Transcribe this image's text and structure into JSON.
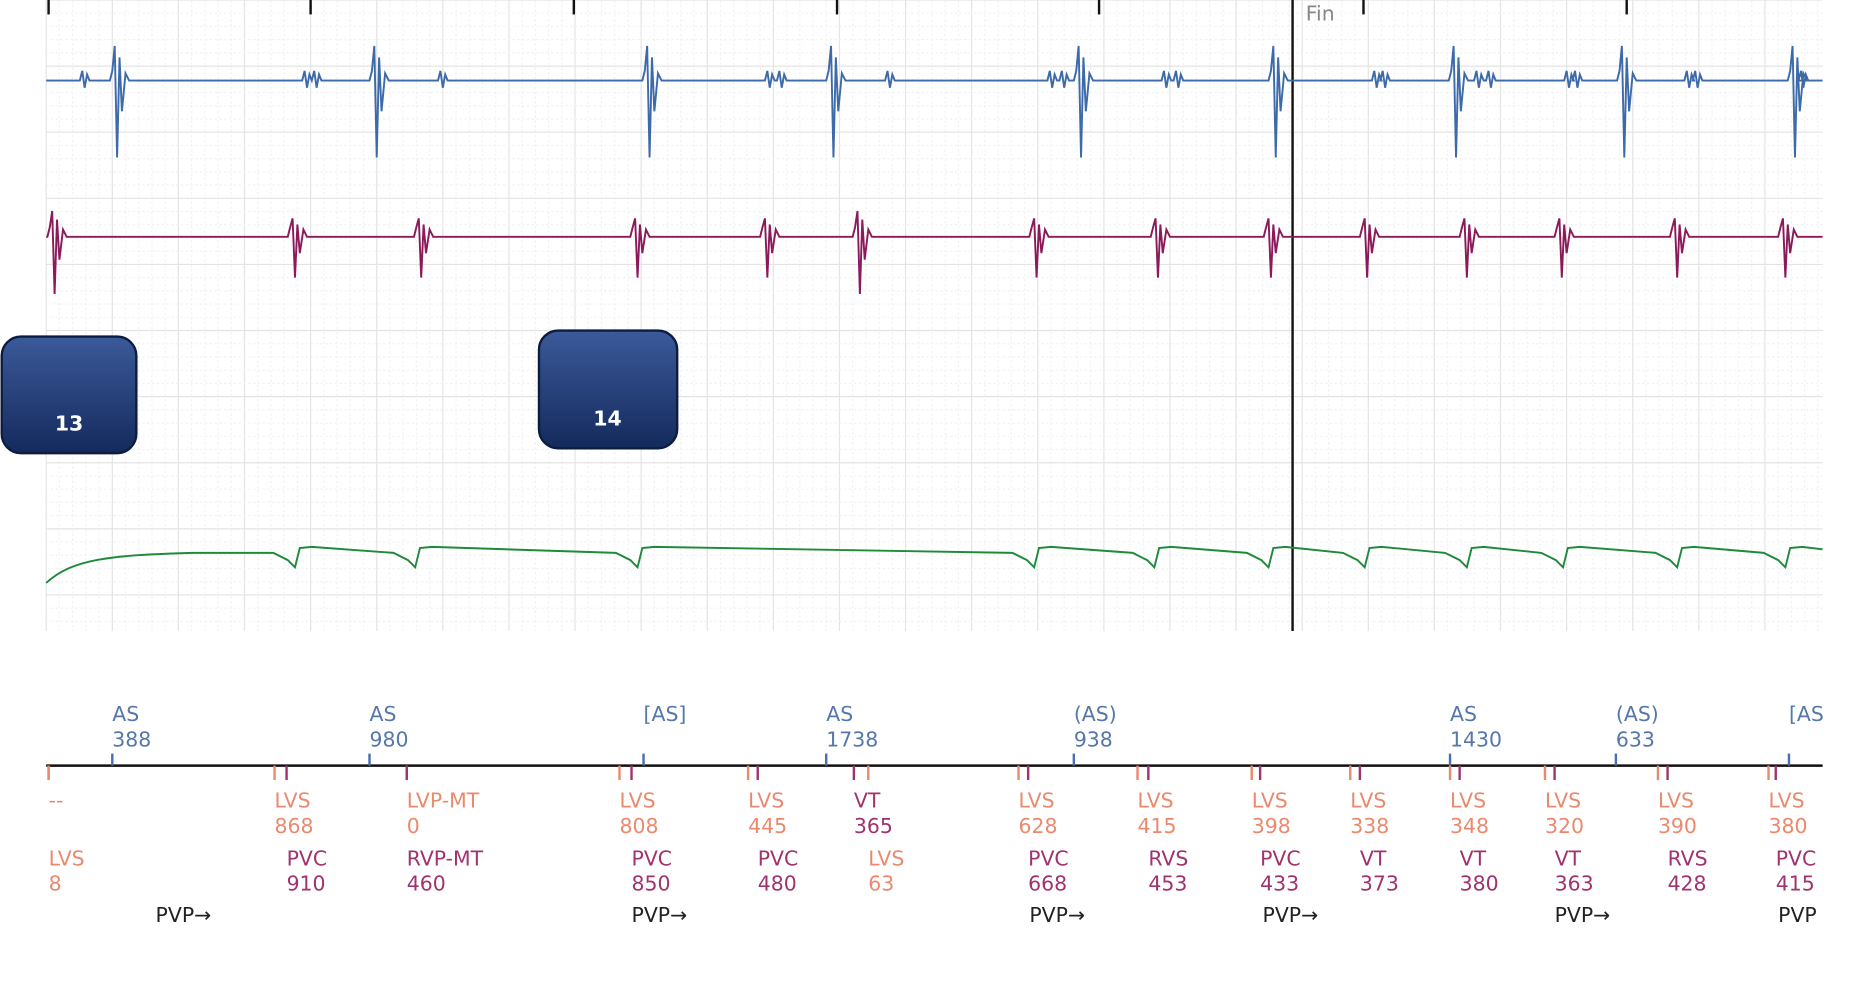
{
  "fin_label": "Fin",
  "badges": [
    "13",
    "14"
  ],
  "atrial_markers": [
    {
      "label": "AS",
      "value": "388"
    },
    {
      "label": "AS",
      "value": "980"
    },
    {
      "label": "[AS]"
    },
    {
      "label": "AS",
      "value": "1738"
    },
    {
      "label": "(AS)",
      "value": "938"
    },
    {
      "label": "AS",
      "value": "1430"
    },
    {
      "label": "(AS)",
      "value": "633"
    },
    {
      "label": "[AS"
    }
  ],
  "ventricular_row_1": [
    {
      "label": "--",
      "color": "#e98a6e"
    },
    {
      "label": "LVS",
      "value": "868",
      "color": "#e98a6e"
    },
    {
      "label": "LVP-MT",
      "value": "0",
      "color": "#e98a6e"
    },
    {
      "label": "LVS",
      "value": "808",
      "color": "#e98a6e"
    },
    {
      "label": "LVS",
      "value": "445",
      "color": "#e98a6e"
    },
    {
      "label": "VT",
      "value": "365",
      "color": "#a0336e"
    },
    {
      "label": "LVS",
      "value": "628",
      "color": "#e98a6e"
    },
    {
      "label": "LVS",
      "value": "415",
      "color": "#e98a6e"
    },
    {
      "label": "LVS",
      "value": "398",
      "color": "#e98a6e"
    },
    {
      "label": "LVS",
      "value": "338",
      "color": "#e98a6e"
    },
    {
      "label": "LVS",
      "value": "348",
      "color": "#e98a6e"
    },
    {
      "label": "LVS",
      "value": "320",
      "color": "#e98a6e"
    },
    {
      "label": "LVS",
      "value": "390",
      "color": "#e98a6e"
    },
    {
      "label": "LVS",
      "value": "380",
      "color": "#e98a6e"
    }
  ],
  "ventricular_row_2": [
    {
      "label": "LVS",
      "value": "8",
      "color": "#e98a6e"
    },
    {
      "label": "PVC",
      "value": "910",
      "color": "#a0336e"
    },
    {
      "label": "RVP-MT",
      "value": "460",
      "color": "#a0336e"
    },
    {
      "label": "PVC",
      "value": "850",
      "color": "#a0336e"
    },
    {
      "label": "PVC",
      "value": "480",
      "color": "#a0336e"
    },
    {
      "label": "LVS",
      "value": "63",
      "color": "#e98a6e"
    },
    {
      "label": "PVC",
      "value": "668",
      "color": "#a0336e"
    },
    {
      "label": "RVS",
      "value": "453",
      "color": "#a0336e"
    },
    {
      "label": "PVC",
      "value": "433",
      "color": "#a0336e"
    },
    {
      "label": "VT",
      "value": "373",
      "color": "#a0336e"
    },
    {
      "label": "VT",
      "value": "380",
      "color": "#a0336e"
    },
    {
      "label": "VT",
      "value": "363",
      "color": "#a0336e"
    },
    {
      "label": "RVS",
      "value": "428",
      "color": "#a0336e"
    },
    {
      "label": "PVC",
      "value": "415",
      "color": "#a0336e"
    }
  ],
  "pvp_markers": [
    "PVP→",
    "PVP→",
    "PVP→",
    "PVP→",
    "PVP→",
    "PVP"
  ]
}
